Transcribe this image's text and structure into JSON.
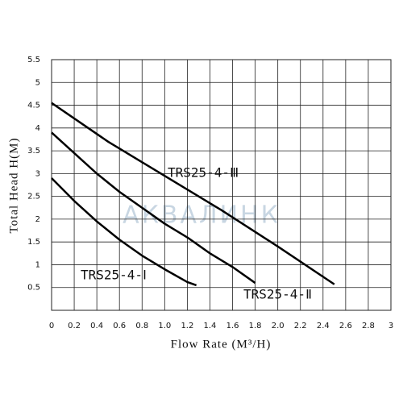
{
  "chart_data": {
    "type": "line",
    "xlabel": "Flow Rate (M³/H)",
    "ylabel": "Total Head H(M)",
    "watermark": "АКВАЛИНК",
    "xlim": [
      0,
      3
    ],
    "ylim": [
      0,
      5.5
    ],
    "xticks": [
      0,
      0.2,
      0.4,
      0.6,
      0.8,
      {
        "value": 1,
        "label": "1.0"
      },
      1.2,
      1.4,
      1.6,
      1.8,
      {
        "value": 2,
        "label": "2.0"
      },
      2.2,
      2.4,
      2.6,
      2.8,
      3
    ],
    "yticks": [
      0.5,
      1,
      1.5,
      2,
      2.5,
      3,
      3.5,
      4,
      4.5,
      5,
      5.5
    ],
    "grid": true,
    "series": [
      {
        "name": "TRS25-4-Ⅰ",
        "color": "#000000",
        "x": [
          0,
          0.2,
          0.4,
          0.6,
          0.8,
          1.0,
          1.2,
          1.28
        ],
        "values": [
          2.9,
          2.4,
          1.95,
          1.55,
          1.2,
          0.9,
          0.62,
          0.55
        ]
      },
      {
        "name": "TRS25-4-Ⅱ",
        "color": "#000000",
        "x": [
          0,
          0.2,
          0.4,
          0.6,
          0.8,
          1.0,
          1.2,
          1.4,
          1.6,
          1.8
        ],
        "values": [
          3.9,
          3.45,
          3.0,
          2.6,
          2.25,
          1.9,
          1.6,
          1.25,
          0.95,
          0.6
        ]
      },
      {
        "name": "TRS25-4-Ⅲ",
        "color": "#000000",
        "x": [
          0,
          0.5,
          1.0,
          1.5,
          2.0,
          2.5
        ],
        "values": [
          4.55,
          3.7,
          2.95,
          2.2,
          1.4,
          0.57
        ]
      }
    ]
  }
}
